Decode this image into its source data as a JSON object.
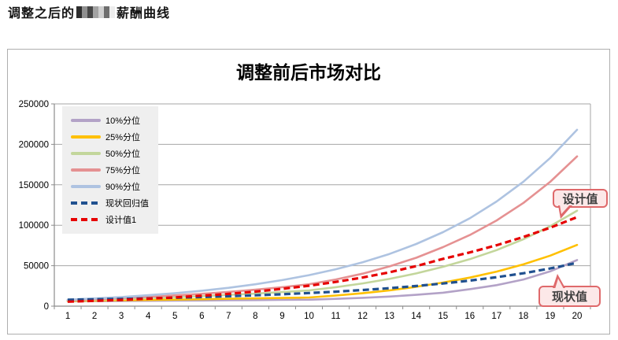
{
  "heading": {
    "prefix": "调整之后的",
    "suffix": "薪酬曲线",
    "redaction_blocks": [
      "#2e2e2e",
      "#8f8f8f",
      "#474747",
      "#a3a3a3",
      "#cfcfcf",
      "#6e6e6e",
      "#ededed"
    ]
  },
  "chart": {
    "title": "调整前后市场对比",
    "callouts": {
      "design": "设计值",
      "current": "现状值"
    },
    "colors": {
      "legend_background": "#efefef",
      "gridline": "#a6a6a6",
      "axis": "#8c8c8c",
      "callout_fill": "#fce8e8",
      "callout_border": "#df696b"
    }
  },
  "chart_data": {
    "type": "line",
    "title": "调整前后市场对比",
    "x": [
      1,
      2,
      3,
      4,
      5,
      6,
      7,
      8,
      9,
      10,
      11,
      12,
      13,
      14,
      15,
      16,
      17,
      18,
      19,
      20
    ],
    "xlabel": "",
    "ylabel": "",
    "ylim": [
      0,
      250000
    ],
    "ytick_interval": 50000,
    "grid": "horizontal",
    "legend_position": "upper-left",
    "series": [
      {
        "name": "10%分位",
        "color": "#b3a2c7",
        "style": "solid",
        "values": [
          6000,
          6200,
          6400,
          6600,
          6800,
          7000,
          7300,
          7500,
          7750,
          8000,
          9000,
          10300,
          11900,
          14000,
          16600,
          21000,
          26000,
          33000,
          43000,
          57000
        ]
      },
      {
        "name": "25%分位",
        "color": "#ffc000",
        "style": "solid",
        "values": [
          6500,
          6900,
          7300,
          7700,
          8100,
          8600,
          9100,
          9600,
          10100,
          10700,
          13100,
          16000,
          19500,
          23900,
          29200,
          35300,
          42700,
          51700,
          62500,
          75700
        ]
      },
      {
        "name": "50%分位",
        "color": "#c3d69b",
        "style": "solid",
        "values": [
          7000,
          7800,
          8800,
          9900,
          11000,
          12400,
          13900,
          15500,
          17400,
          19500,
          23400,
          28100,
          33700,
          40500,
          48600,
          58100,
          69300,
          82800,
          98800,
          118000
        ]
      },
      {
        "name": "75%分位",
        "color": "#e59192",
        "style": "solid",
        "values": [
          7500,
          8600,
          10000,
          11500,
          13300,
          15300,
          17600,
          20300,
          23400,
          27000,
          33000,
          40200,
          49100,
          59800,
          73000,
          87900,
          105900,
          127600,
          153700,
          185100
        ]
      },
      {
        "name": "90%分位",
        "color": "#aec3e1",
        "style": "solid",
        "values": [
          8000,
          9500,
          11300,
          13500,
          16000,
          19100,
          22700,
          27000,
          32200,
          38300,
          45600,
          54200,
          64500,
          76800,
          91400,
          108700,
          129400,
          153900,
          183200,
          218000
        ]
      },
      {
        "name": "现状回归值",
        "color": "#20508f",
        "style": "dashed",
        "values": [
          8000,
          8450,
          9000,
          9650,
          10400,
          11250,
          12250,
          13400,
          14700,
          16200,
          17900,
          19900,
          22200,
          24900,
          28000,
          31600,
          35800,
          40700,
          46600,
          53500
        ]
      },
      {
        "name": "设计值1",
        "color": "#e60000",
        "style": "dashed",
        "values": [
          5500,
          6500,
          7700,
          9200,
          10800,
          12900,
          15200,
          18000,
          21400,
          25300,
          30000,
          35400,
          41800,
          49500,
          58500,
          66400,
          75300,
          85500,
          97000,
          110000
        ]
      }
    ],
    "annotations": [
      {
        "text": "设计值",
        "points_to": "设计值1"
      },
      {
        "text": "现状值",
        "points_to": "现状回归值"
      }
    ]
  }
}
